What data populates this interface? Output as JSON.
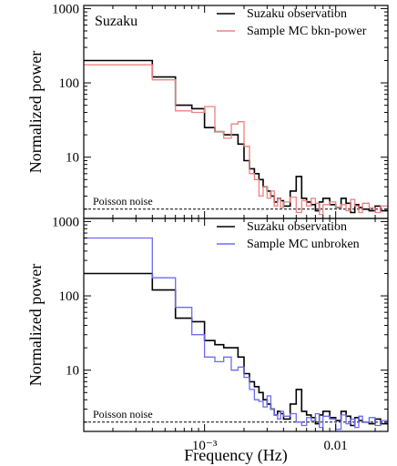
{
  "chart_data": [
    {
      "type": "line",
      "step": true,
      "panel_label": "Suzaku",
      "xscale": "log",
      "yscale": "log",
      "xlim": [
        0.00012,
        0.025
      ],
      "ylim": [
        1.5,
        1100
      ],
      "ylabel": "Normalized power",
      "xlabel": "",
      "yticks": [
        10,
        100,
        1000
      ],
      "ytick_labels": [
        "10",
        "100",
        "1000"
      ],
      "xticks": [],
      "xtick_labels": [],
      "legend_position": "top-right",
      "annotation": {
        "text": "Poisson noise",
        "y": 2.0
      },
      "series": [
        {
          "name": "Suzaku observation",
          "color": "#000000",
          "x": [
            0.00012,
            0.0004,
            0.0006,
            0.0008,
            0.001,
            0.0012,
            0.0014,
            0.0016,
            0.0018,
            0.002,
            0.0022,
            0.0024,
            0.0026,
            0.0028,
            0.003,
            0.0032,
            0.0034,
            0.0036,
            0.0038,
            0.004,
            0.0045,
            0.005,
            0.0055,
            0.006,
            0.0065,
            0.007,
            0.0075,
            0.008,
            0.009,
            0.01,
            0.011,
            0.012,
            0.013,
            0.014,
            0.015,
            0.016,
            0.018,
            0.02,
            0.022,
            0.025
          ],
          "values": [
            200,
            120,
            50,
            45,
            25,
            22,
            20,
            20,
            15,
            9,
            7,
            6,
            5,
            4,
            3.5,
            3,
            2.5,
            2.8,
            2.6,
            2.2,
            3.5,
            5.5,
            2.8,
            2.5,
            2.3,
            1.9,
            2.5,
            2.8,
            2.3,
            2.1,
            2.8,
            2.4,
            1.8,
            2.3,
            2.1,
            2.0,
            1.9,
            2.2,
            1.9,
            1.9
          ]
        },
        {
          "name": "Sample MC bkn-power",
          "color": "#f08080",
          "x": [
            0.00012,
            0.0004,
            0.0006,
            0.0008,
            0.001,
            0.0012,
            0.0014,
            0.0016,
            0.0018,
            0.002,
            0.0022,
            0.0024,
            0.0026,
            0.0028,
            0.003,
            0.0032,
            0.0034,
            0.0036,
            0.0038,
            0.004,
            0.0045,
            0.005,
            0.0055,
            0.006,
            0.0065,
            0.007,
            0.0075,
            0.008,
            0.009,
            0.01,
            0.011,
            0.012,
            0.013,
            0.014,
            0.015,
            0.016,
            0.018,
            0.02,
            0.022,
            0.025
          ],
          "values": [
            175,
            110,
            42,
            40,
            48,
            22,
            18,
            28,
            30,
            14,
            6,
            5,
            3,
            4,
            2.8,
            3.5,
            2.2,
            2.8,
            2.1,
            2.5,
            2.9,
            1.8,
            2.6,
            2.2,
            2.8,
            2.4,
            1.7,
            2.3,
            2.5,
            2.1,
            2.3,
            1.9,
            2.7,
            2.2,
            1.8,
            2.4,
            2.1,
            1.8,
            2.2,
            2.2
          ]
        }
      ]
    },
    {
      "type": "line",
      "step": true,
      "xscale": "log",
      "yscale": "log",
      "xlim": [
        0.00012,
        0.025
      ],
      "ylim": [
        1.5,
        1100
      ],
      "ylabel": "Normalized power",
      "xlabel": "Frequency (Hz)",
      "yticks": [
        10,
        100,
        1000
      ],
      "ytick_labels": [
        "10",
        "100",
        "1000"
      ],
      "xticks": [
        0.001,
        0.01
      ],
      "xtick_labels": [
        "10⁻³",
        "0.01"
      ],
      "legend_position": "top-right",
      "annotation": {
        "text": "Poisson noise",
        "y": 2.0
      },
      "series": [
        {
          "name": "Suzaku observation",
          "color": "#000000",
          "x": [
            0.00012,
            0.0004,
            0.0006,
            0.0008,
            0.001,
            0.0012,
            0.0014,
            0.0016,
            0.0018,
            0.002,
            0.0022,
            0.0024,
            0.0026,
            0.0028,
            0.003,
            0.0032,
            0.0034,
            0.0036,
            0.0038,
            0.004,
            0.0045,
            0.005,
            0.0055,
            0.006,
            0.0065,
            0.007,
            0.0075,
            0.008,
            0.009,
            0.01,
            0.011,
            0.012,
            0.013,
            0.014,
            0.015,
            0.016,
            0.018,
            0.02,
            0.022,
            0.025
          ],
          "values": [
            200,
            120,
            50,
            45,
            25,
            22,
            20,
            20,
            15,
            9,
            7,
            6,
            5,
            4,
            3.5,
            3,
            2.5,
            2.8,
            2.6,
            2.2,
            3.5,
            5.5,
            2.8,
            2.5,
            2.3,
            1.9,
            2.5,
            2.8,
            2.3,
            2.1,
            2.8,
            2.4,
            1.8,
            2.3,
            2.1,
            2.0,
            1.9,
            2.2,
            1.9,
            1.9
          ]
        },
        {
          "name": "Sample MC unbroken",
          "color": "#6b6bf0",
          "x": [
            0.00012,
            0.0004,
            0.0006,
            0.0008,
            0.001,
            0.0012,
            0.0014,
            0.0016,
            0.0018,
            0.002,
            0.0022,
            0.0024,
            0.0026,
            0.0028,
            0.003,
            0.0032,
            0.0034,
            0.0036,
            0.0038,
            0.004,
            0.0045,
            0.005,
            0.0055,
            0.006,
            0.0065,
            0.007,
            0.0075,
            0.008,
            0.009,
            0.01,
            0.011,
            0.012,
            0.013,
            0.014,
            0.015,
            0.016,
            0.018,
            0.02,
            0.022,
            0.025
          ],
          "values": [
            600,
            175,
            70,
            30,
            15,
            13,
            15,
            10,
            11,
            8,
            5.5,
            4,
            3.8,
            3.2,
            4.5,
            3,
            2.5,
            2.2,
            2.8,
            2.4,
            2.6,
            2.0,
            1.8,
            2.3,
            2.1,
            2.6,
            1.7,
            2.4,
            2.2,
            1.6,
            2.5,
            1.9,
            2.2,
            1.7,
            2.4,
            2.0,
            2.3,
            1.8,
            2.1,
            2.1
          ]
        }
      ]
    }
  ]
}
